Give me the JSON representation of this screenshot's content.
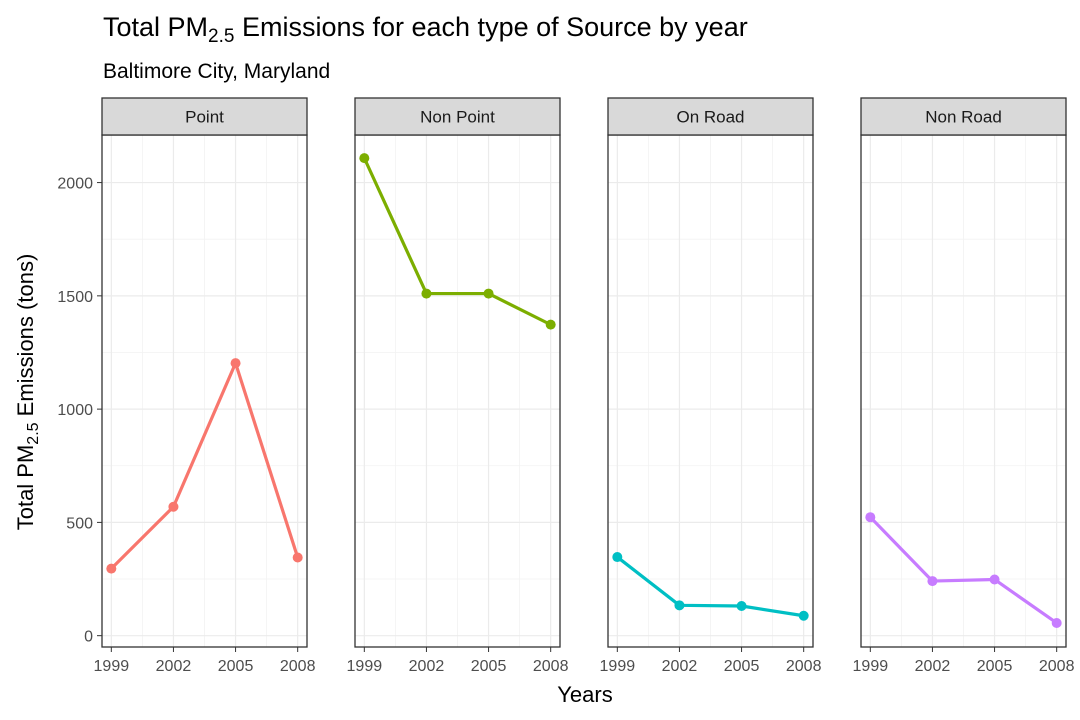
{
  "chart_data": {
    "type": "line",
    "title": {
      "prefix": "Total PM",
      "subscript": "2.5",
      "suffix": " Emissions for each type of Source by year"
    },
    "subtitle": "Baltimore City, Maryland",
    "xlabel": "Years",
    "ylabel": {
      "prefix": "Total PM",
      "subscript": "2.5",
      "suffix": " Emissions (tons)"
    },
    "x": [
      1999,
      2002,
      2005,
      2008
    ],
    "x_ticks": [
      "1999",
      "2002",
      "2005",
      "2008"
    ],
    "ylim": [
      -50,
      2210
    ],
    "y_ticks": [
      0,
      500,
      1000,
      1500,
      2000
    ],
    "y_tick_labels": [
      "0",
      "500",
      "1000",
      "1500",
      "2000"
    ],
    "grid": true,
    "facets": [
      {
        "name": "Point",
        "color": "#F8766D",
        "values": [
          296,
          569,
          1203,
          345
        ]
      },
      {
        "name": "Non Point",
        "color": "#7CAE00",
        "values": [
          2108,
          1510,
          1510,
          1373
        ]
      },
      {
        "name": "On Road",
        "color": "#00BFC4",
        "values": [
          347,
          134,
          131,
          88
        ]
      },
      {
        "name": "Non Road",
        "color": "#C77CFF",
        "values": [
          523,
          241,
          248,
          56
        ]
      }
    ]
  }
}
